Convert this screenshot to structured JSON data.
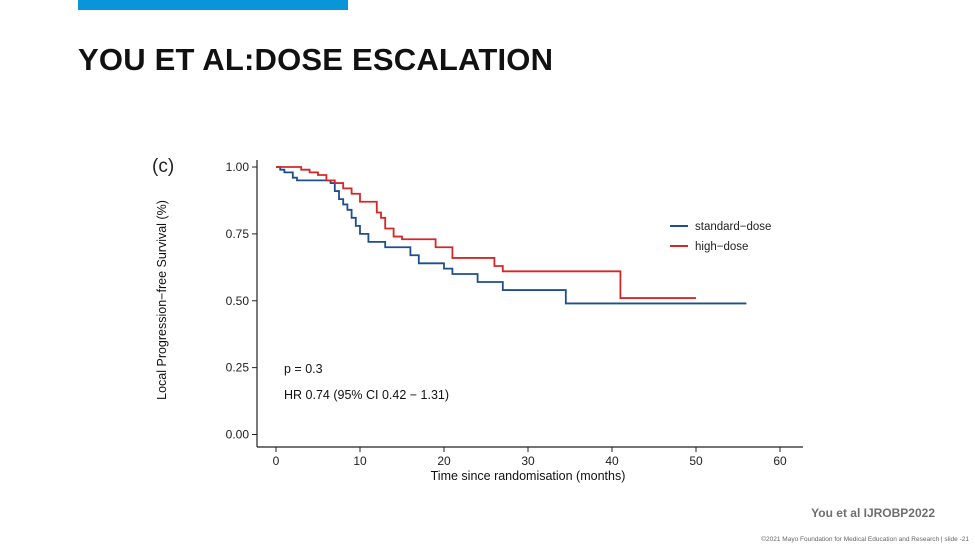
{
  "slide": {
    "title": "YOU ET AL:DOSE ESCALATION",
    "citation": "You et al IJROBP2022",
    "footer": "©2021 Mayo Foundation for Medical Education and Research | slide -21",
    "accent_color": "#0a95d9"
  },
  "chart_data": {
    "type": "line",
    "step": true,
    "panel_label": "(c)",
    "xlabel": "Time since randomisation (months)",
    "ylabel": "Local Progression−free Survival (%)",
    "xlim": [
      0,
      63
    ],
    "ylim": [
      0,
      1.0
    ],
    "xticks": [
      0,
      10,
      20,
      30,
      40,
      50,
      60
    ],
    "yticks": [
      0.0,
      0.25,
      0.5,
      0.75,
      1.0
    ],
    "ytick_labels": [
      "0.00",
      "0.25",
      "0.50",
      "0.75",
      "1.00"
    ],
    "grid": false,
    "legend_position": "right",
    "series": [
      {
        "name": "standard−dose",
        "color": "#1f4e8c",
        "points": [
          [
            0,
            1.0
          ],
          [
            0.5,
            0.99
          ],
          [
            1,
            0.98
          ],
          [
            2,
            0.96
          ],
          [
            2.5,
            0.95
          ],
          [
            6,
            0.95
          ],
          [
            6.5,
            0.94
          ],
          [
            7,
            0.91
          ],
          [
            7.5,
            0.88
          ],
          [
            8,
            0.86
          ],
          [
            8.5,
            0.84
          ],
          [
            9,
            0.81
          ],
          [
            9.5,
            0.78
          ],
          [
            10,
            0.75
          ],
          [
            11,
            0.72
          ],
          [
            13,
            0.7
          ],
          [
            16,
            0.67
          ],
          [
            17,
            0.64
          ],
          [
            20,
            0.62
          ],
          [
            21,
            0.6
          ],
          [
            24,
            0.57
          ],
          [
            27,
            0.54
          ],
          [
            34.5,
            0.49
          ],
          [
            56,
            0.49
          ]
        ]
      },
      {
        "name": "high−dose",
        "color": "#d62728",
        "points": [
          [
            0,
            1.0
          ],
          [
            3,
            0.99
          ],
          [
            4,
            0.98
          ],
          [
            5,
            0.97
          ],
          [
            6,
            0.95
          ],
          [
            7,
            0.94
          ],
          [
            8,
            0.92
          ],
          [
            9,
            0.9
          ],
          [
            10,
            0.87
          ],
          [
            12,
            0.83
          ],
          [
            12.5,
            0.81
          ],
          [
            13,
            0.77
          ],
          [
            14,
            0.74
          ],
          [
            15,
            0.73
          ],
          [
            19,
            0.7
          ],
          [
            21,
            0.66
          ],
          [
            26,
            0.63
          ],
          [
            27,
            0.61
          ],
          [
            41,
            0.51
          ],
          [
            50,
            0.51
          ]
        ]
      }
    ],
    "annotations": [
      "p = 0.3",
      "HR 0.74 (95% CI 0.42 − 1.31)"
    ]
  }
}
